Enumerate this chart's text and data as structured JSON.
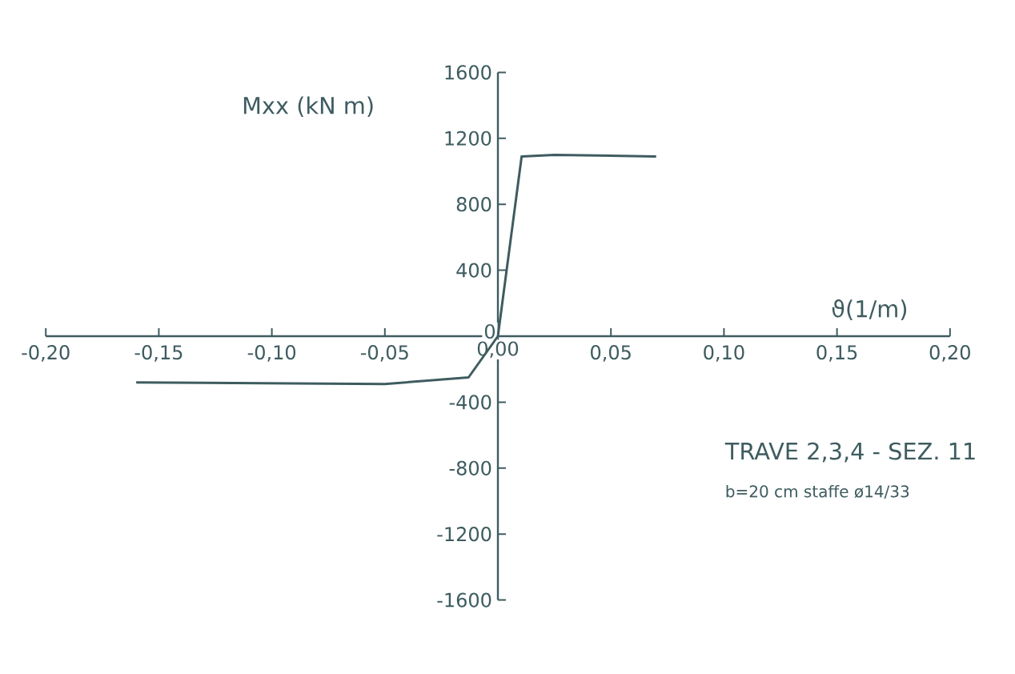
{
  "chart_data": {
    "type": "line",
    "xlabel": "ϑ(1/m)",
    "ylabel": "Mxx (kN m)",
    "x": [
      -0.16,
      -0.05,
      -0.013,
      0,
      0.0105,
      0.025,
      0.07
    ],
    "values": [
      -280,
      -290,
      -250,
      0,
      1090,
      1100,
      1090
    ],
    "color": "#3e5c60",
    "xlim": [
      -0.2,
      0.2
    ],
    "ylim": [
      -1600,
      1600
    ],
    "xticks": [
      {
        "value": -0.2,
        "label": "-0,20"
      },
      {
        "value": -0.15,
        "label": "-0,15"
      },
      {
        "value": -0.1,
        "label": "-0,10"
      },
      {
        "value": -0.05,
        "label": "-0,05"
      },
      {
        "value": 0,
        "label": "0,00"
      },
      {
        "value": 0.05,
        "label": "0,05"
      },
      {
        "value": 0.1,
        "label": "0,10"
      },
      {
        "value": 0.15,
        "label": "0,15"
      },
      {
        "value": 0.2,
        "label": "0,20"
      }
    ],
    "yticks": [
      -1600,
      -1200,
      -800,
      -400,
      0,
      400,
      800,
      1200,
      1600
    ],
    "grid": false,
    "marker": "none",
    "line_style": "solid",
    "annotations": [
      "TRAVE 2,3,4 - SEZ. 11",
      "b=20 cm staffe ø14/33"
    ]
  }
}
